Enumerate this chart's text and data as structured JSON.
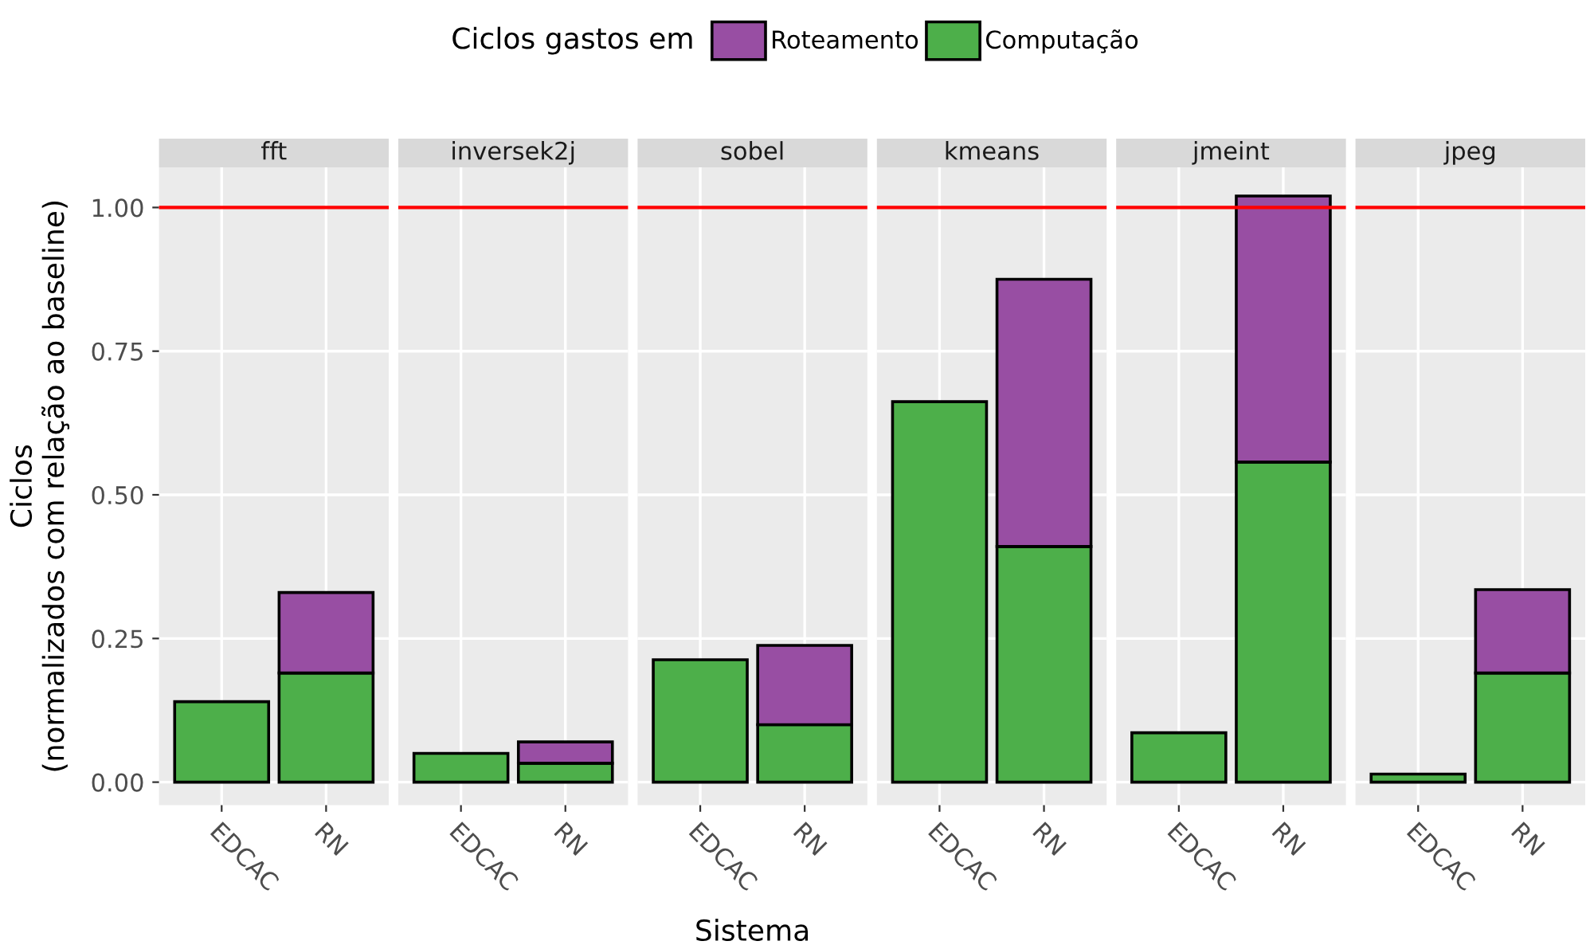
{
  "chart_data": [
    {
      "type": "bar",
      "title": "fft",
      "ylabel": "Ciclos\n(normalizados com relação ao baseline)",
      "legend_title": "Ciclos gastos em",
      "legend": "top",
      "stacked": true,
      "grid": true,
      "categories": [
        "EDCAC",
        "RN"
      ],
      "ylim": [
        -0.04,
        1.07
      ],
      "yticks": [
        {
          "value": 0,
          "label": "0.00"
        },
        {
          "value": 0.25,
          "label": "0.25"
        },
        {
          "value": 0.5,
          "label": "0.50"
        },
        {
          "value": 0.75,
          "label": "0.75"
        },
        {
          "value": 1,
          "label": "1.00"
        }
      ],
      "series": [
        {
          "name": "Computação",
          "color": "#4daf4a",
          "values": [
            0.14,
            0.19
          ]
        },
        {
          "name": "Roteamento",
          "color": "#984ea3",
          "values": [
            null,
            0.14
          ]
        }
      ],
      "ref_lines": [
        {
          "axis": "y",
          "value": 1.0,
          "color": "#ff0000"
        }
      ]
    },
    {
      "type": "bar",
      "title": "inversek2j",
      "stacked": true,
      "grid": true,
      "tick_labels": "x",
      "categories": [
        "EDCAC",
        "RN"
      ],
      "ylim": [
        -0.04,
        1.07
      ],
      "yticks": [
        0,
        0.25,
        0.5,
        0.75,
        1
      ],
      "series": [
        {
          "color": "#4daf4a",
          "values": [
            0.05,
            0.033
          ]
        },
        {
          "color": "#984ea3",
          "values": [
            null,
            0.037
          ]
        }
      ],
      "ref_lines": [
        {
          "axis": "y",
          "value": 1.0,
          "color": "#ff0000"
        }
      ]
    },
    {
      "type": "bar",
      "title": "sobel",
      "xlabel": "Sistema",
      "stacked": true,
      "grid": true,
      "tick_labels": "x",
      "categories": [
        "EDCAC",
        "RN"
      ],
      "ylim": [
        -0.04,
        1.07
      ],
      "yticks": [
        0,
        0.25,
        0.5,
        0.75,
        1
      ],
      "series": [
        {
          "color": "#4daf4a",
          "values": [
            0.213,
            0.1
          ]
        },
        {
          "color": "#984ea3",
          "values": [
            null,
            0.138
          ]
        }
      ],
      "ref_lines": [
        {
          "axis": "y",
          "value": 1.0,
          "color": "#ff0000"
        }
      ]
    },
    {
      "type": "bar",
      "title": "kmeans",
      "stacked": true,
      "grid": true,
      "tick_labels": "x",
      "categories": [
        "EDCAC",
        "RN"
      ],
      "ylim": [
        -0.04,
        1.07
      ],
      "yticks": [
        0,
        0.25,
        0.5,
        0.75,
        1
      ],
      "series": [
        {
          "color": "#4daf4a",
          "values": [
            0.662,
            0.41
          ]
        },
        {
          "color": "#984ea3",
          "values": [
            null,
            0.465
          ]
        }
      ],
      "ref_lines": [
        {
          "axis": "y",
          "value": 1.0,
          "color": "#ff0000"
        }
      ]
    },
    {
      "type": "bar",
      "title": "jmeint",
      "stacked": true,
      "grid": true,
      "tick_labels": "x",
      "categories": [
        "EDCAC",
        "RN"
      ],
      "ylim": [
        -0.04,
        1.07
      ],
      "yticks": [
        0,
        0.25,
        0.5,
        0.75,
        1
      ],
      "series": [
        {
          "color": "#4daf4a",
          "values": [
            0.086,
            0.557
          ]
        },
        {
          "color": "#984ea3",
          "values": [
            null,
            0.463
          ]
        }
      ],
      "ref_lines": [
        {
          "axis": "y",
          "value": 1.0,
          "color": "#ff0000"
        }
      ]
    },
    {
      "type": "bar",
      "title": "jpeg",
      "stacked": true,
      "grid": true,
      "tick_labels": "x",
      "categories": [
        "EDCAC",
        "RN"
      ],
      "ylim": [
        -0.04,
        1.07
      ],
      "yticks": [
        0,
        0.25,
        0.5,
        0.75,
        1
      ],
      "series": [
        {
          "color": "#4daf4a",
          "values": [
            0.014,
            0.19
          ]
        },
        {
          "color": "#984ea3",
          "values": [
            null,
            0.145
          ]
        }
      ],
      "ref_lines": [
        {
          "axis": "y",
          "value": 1.0,
          "color": "#ff0000"
        }
      ]
    }
  ]
}
